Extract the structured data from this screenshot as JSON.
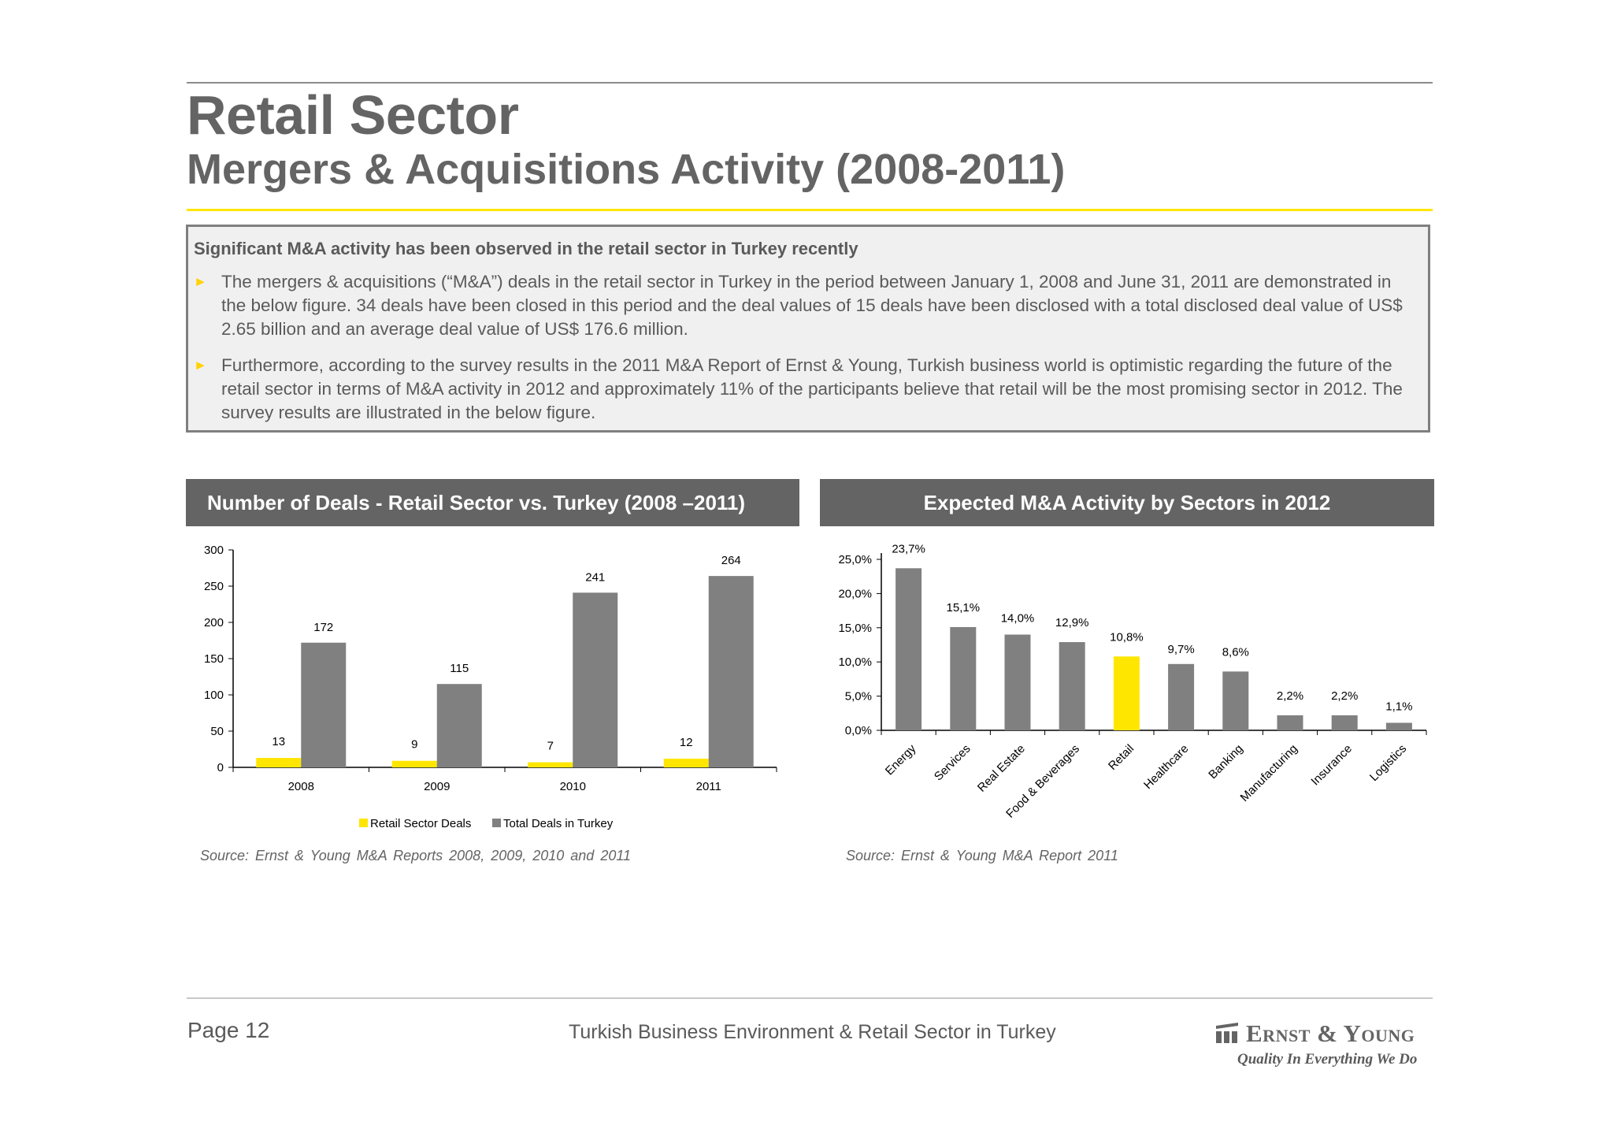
{
  "header": {
    "title": "Retail Sector",
    "subtitle": "Mergers & Acquisitions Activity (2008-2011)"
  },
  "summary": {
    "heading": "Significant M&A activity has been observed in the retail sector in Turkey recently",
    "bullet_1": "The mergers & acquisitions (“M&A”) deals in the retail sector in Turkey in the period between January 1, 2008 and June 31, 2011 are demonstrated in the below figure. 34 deals have been closed in this period and the deal values of 15 deals have been disclosed with a total disclosed deal value of US$ 2.65 billion and an average deal value of US$ 176.6 million.",
    "bullet_2": "Furthermore, according to the survey results in the 2011 M&A Report of Ernst & Young, Turkish business world is optimistic regarding the future of the retail sector in terms of M&A activity in 2012 and approximately 11% of the participants believe that retail will be the most promising sector in 2012. The survey results are illustrated in the below figure.",
    "bullet_marker": "►"
  },
  "left_panel": {
    "header": "Number of Deals - Retail Sector vs. Turkey (2008 –2011)",
    "source": "Source: Ernst & Young M&A Reports 2008, 2009, 2010 and 2011"
  },
  "right_panel": {
    "header": "Expected M&A Activity by Sectors in 2012",
    "source": "Source: Ernst & Young M&A Report 2011"
  },
  "footer": {
    "page": "Page 12",
    "document": "Turkish Business Environment & Retail Sector in Turkey",
    "company": "Ernst & Young",
    "tagline": "Quality In Everything We Do"
  },
  "colors": {
    "yellow": "#ffe600",
    "gray_bar": "#808080",
    "header_bg": "#646464",
    "text": "#5a5a5a"
  },
  "chart_data": [
    {
      "type": "bar",
      "categories": [
        "2008",
        "2009",
        "2010",
        "2011"
      ],
      "series": [
        {
          "name": "Retail Sector Deals",
          "values": [
            13,
            9,
            7,
            12
          ],
          "color": "#ffe600"
        },
        {
          "name": "Total Deals in Turkey",
          "values": [
            172,
            115,
            241,
            264
          ],
          "color": "#808080"
        }
      ],
      "ylim": [
        0,
        300
      ],
      "yticks": [
        "0",
        "50",
        "100",
        "150",
        "200",
        "250",
        "300"
      ],
      "grid": false,
      "legend": "bottom"
    },
    {
      "type": "bar",
      "categories": [
        "Energy",
        "Services",
        "Real Estate",
        "Food & Beverages",
        "Retail",
        "Healthcare",
        "Banking",
        "Manufacturing",
        "Insurance",
        "Logistics"
      ],
      "values": [
        23.7,
        15.1,
        14.0,
        12.9,
        10.8,
        9.7,
        8.6,
        2.2,
        2.2,
        1.1
      ],
      "labels": [
        "23,7%",
        "15,1%",
        "14,0%",
        "12,9%",
        "10,8%",
        "9,7%",
        "8,6%",
        "2,2%",
        "2,2%",
        "1,1%"
      ],
      "highlight": "Retail",
      "ylim": [
        0,
        25
      ],
      "yticks": [
        "0,0%",
        "5,0%",
        "10,0%",
        "15,0%",
        "20,0%",
        "25,0%"
      ],
      "grid": false,
      "legend": "none"
    }
  ]
}
